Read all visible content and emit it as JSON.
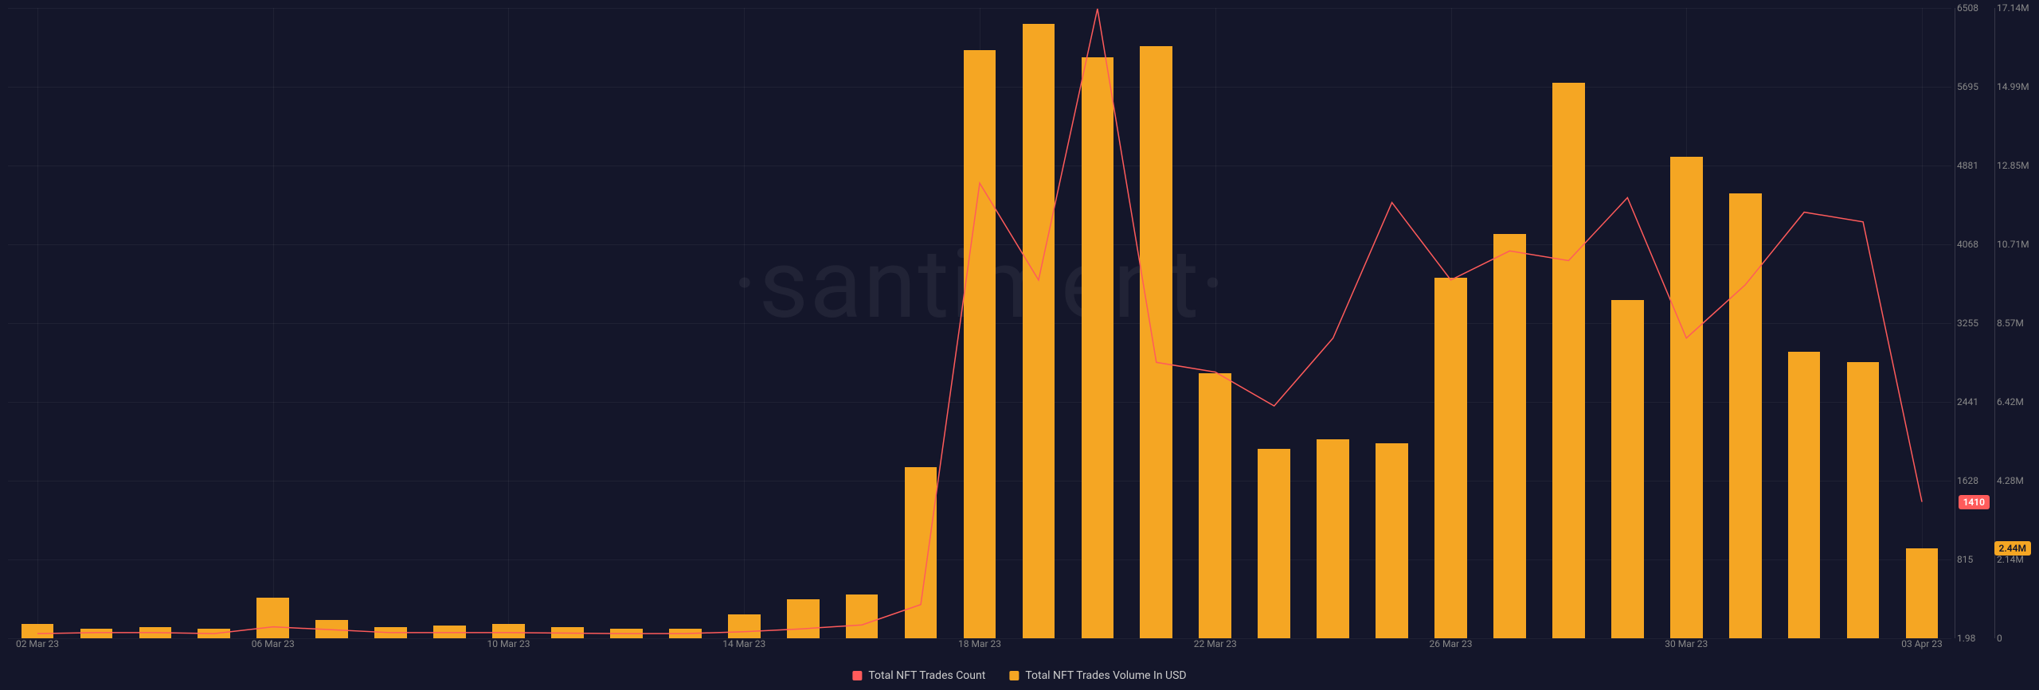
{
  "watermark": "·santiment·",
  "colors": {
    "background": "#14162a",
    "bar": "#f5a623",
    "line": "#ff5b5b",
    "grid": "rgba(255,255,255,0.05)",
    "axis_line": "rgba(255,255,255,0.15)",
    "text_muted": "#888",
    "text_legend": "#ccc",
    "badge_count_bg": "#ff5b5b",
    "badge_count_fg": "#ffffff",
    "badge_volume_bg": "#f5a623",
    "badge_volume_fg": "#14162a"
  },
  "chart": {
    "type": "bar+line",
    "bar_width_ratio": 0.55,
    "dates": [
      "02 Mar 23",
      "03 Mar 23",
      "04 Mar 23",
      "05 Mar 23",
      "06 Mar 23",
      "07 Mar 23",
      "08 Mar 23",
      "09 Mar 23",
      "10 Mar 23",
      "11 Mar 23",
      "12 Mar 23",
      "13 Mar 23",
      "14 Mar 23",
      "15 Mar 23",
      "16 Mar 23",
      "17 Mar 23",
      "18 Mar 23",
      "19 Mar 23",
      "20 Mar 23",
      "21 Mar 23",
      "22 Mar 23",
      "23 Mar 23",
      "24 Mar 23",
      "25 Mar 23",
      "26 Mar 23",
      "27 Mar 23",
      "28 Mar 23",
      "29 Mar 23",
      "30 Mar 23",
      "31 Mar 23",
      "01 Apr 23",
      "02 Apr 23",
      "03 Apr 23"
    ],
    "volume_usd": [
      400000,
      250000,
      300000,
      250000,
      1100000,
      500000,
      300000,
      350000,
      400000,
      300000,
      250000,
      250000,
      650000,
      1050000,
      1200000,
      4650000,
      16000000,
      16700000,
      15800000,
      16100000,
      7200000,
      5150000,
      5400000,
      5300000,
      9800000,
      11000000,
      15100000,
      9200000,
      13100000,
      12100000,
      7800000,
      7500000,
      2440000
    ],
    "trades_count": [
      50,
      60,
      60,
      50,
      120,
      90,
      60,
      60,
      60,
      55,
      50,
      50,
      70,
      100,
      140,
      350,
      4700,
      3700,
      6500,
      2850,
      2750,
      2400,
      3100,
      4500,
      3700,
      4000,
      3900,
      4550,
      3100,
      3650,
      4400,
      4300,
      1410
    ],
    "y_left": {
      "label": "count",
      "min": 1.98,
      "max": 6508,
      "ticks": [
        1.98,
        815,
        1628,
        2441,
        3255,
        4068,
        4881,
        5695,
        6508
      ]
    },
    "y_right": {
      "label": "usd",
      "min": 0,
      "max": 17140000,
      "ticks": [
        0,
        2140000,
        4280000,
        6420000,
        8570000,
        10710000,
        12850000,
        14990000,
        17140000
      ],
      "tick_labels": [
        "0",
        "2.14M",
        "4.28M",
        "6.42M",
        "8.57M",
        "10.71M",
        "12.85M",
        "14.99M",
        "17.14M"
      ]
    },
    "x_ticks": [
      "02 Mar 23",
      "06 Mar 23",
      "10 Mar 23",
      "14 Mar 23",
      "18 Mar 23",
      "22 Mar 23",
      "26 Mar 23",
      "30 Mar 23",
      "03 Apr 23"
    ]
  },
  "legend": {
    "count": {
      "label": "Total NFT Trades Count",
      "color": "#ff5b5b"
    },
    "volume": {
      "label": "Total NFT Trades Volume In USD",
      "color": "#f5a623"
    }
  },
  "badges": {
    "count": {
      "value": "1410"
    },
    "volume": {
      "value": "2.44M"
    }
  }
}
